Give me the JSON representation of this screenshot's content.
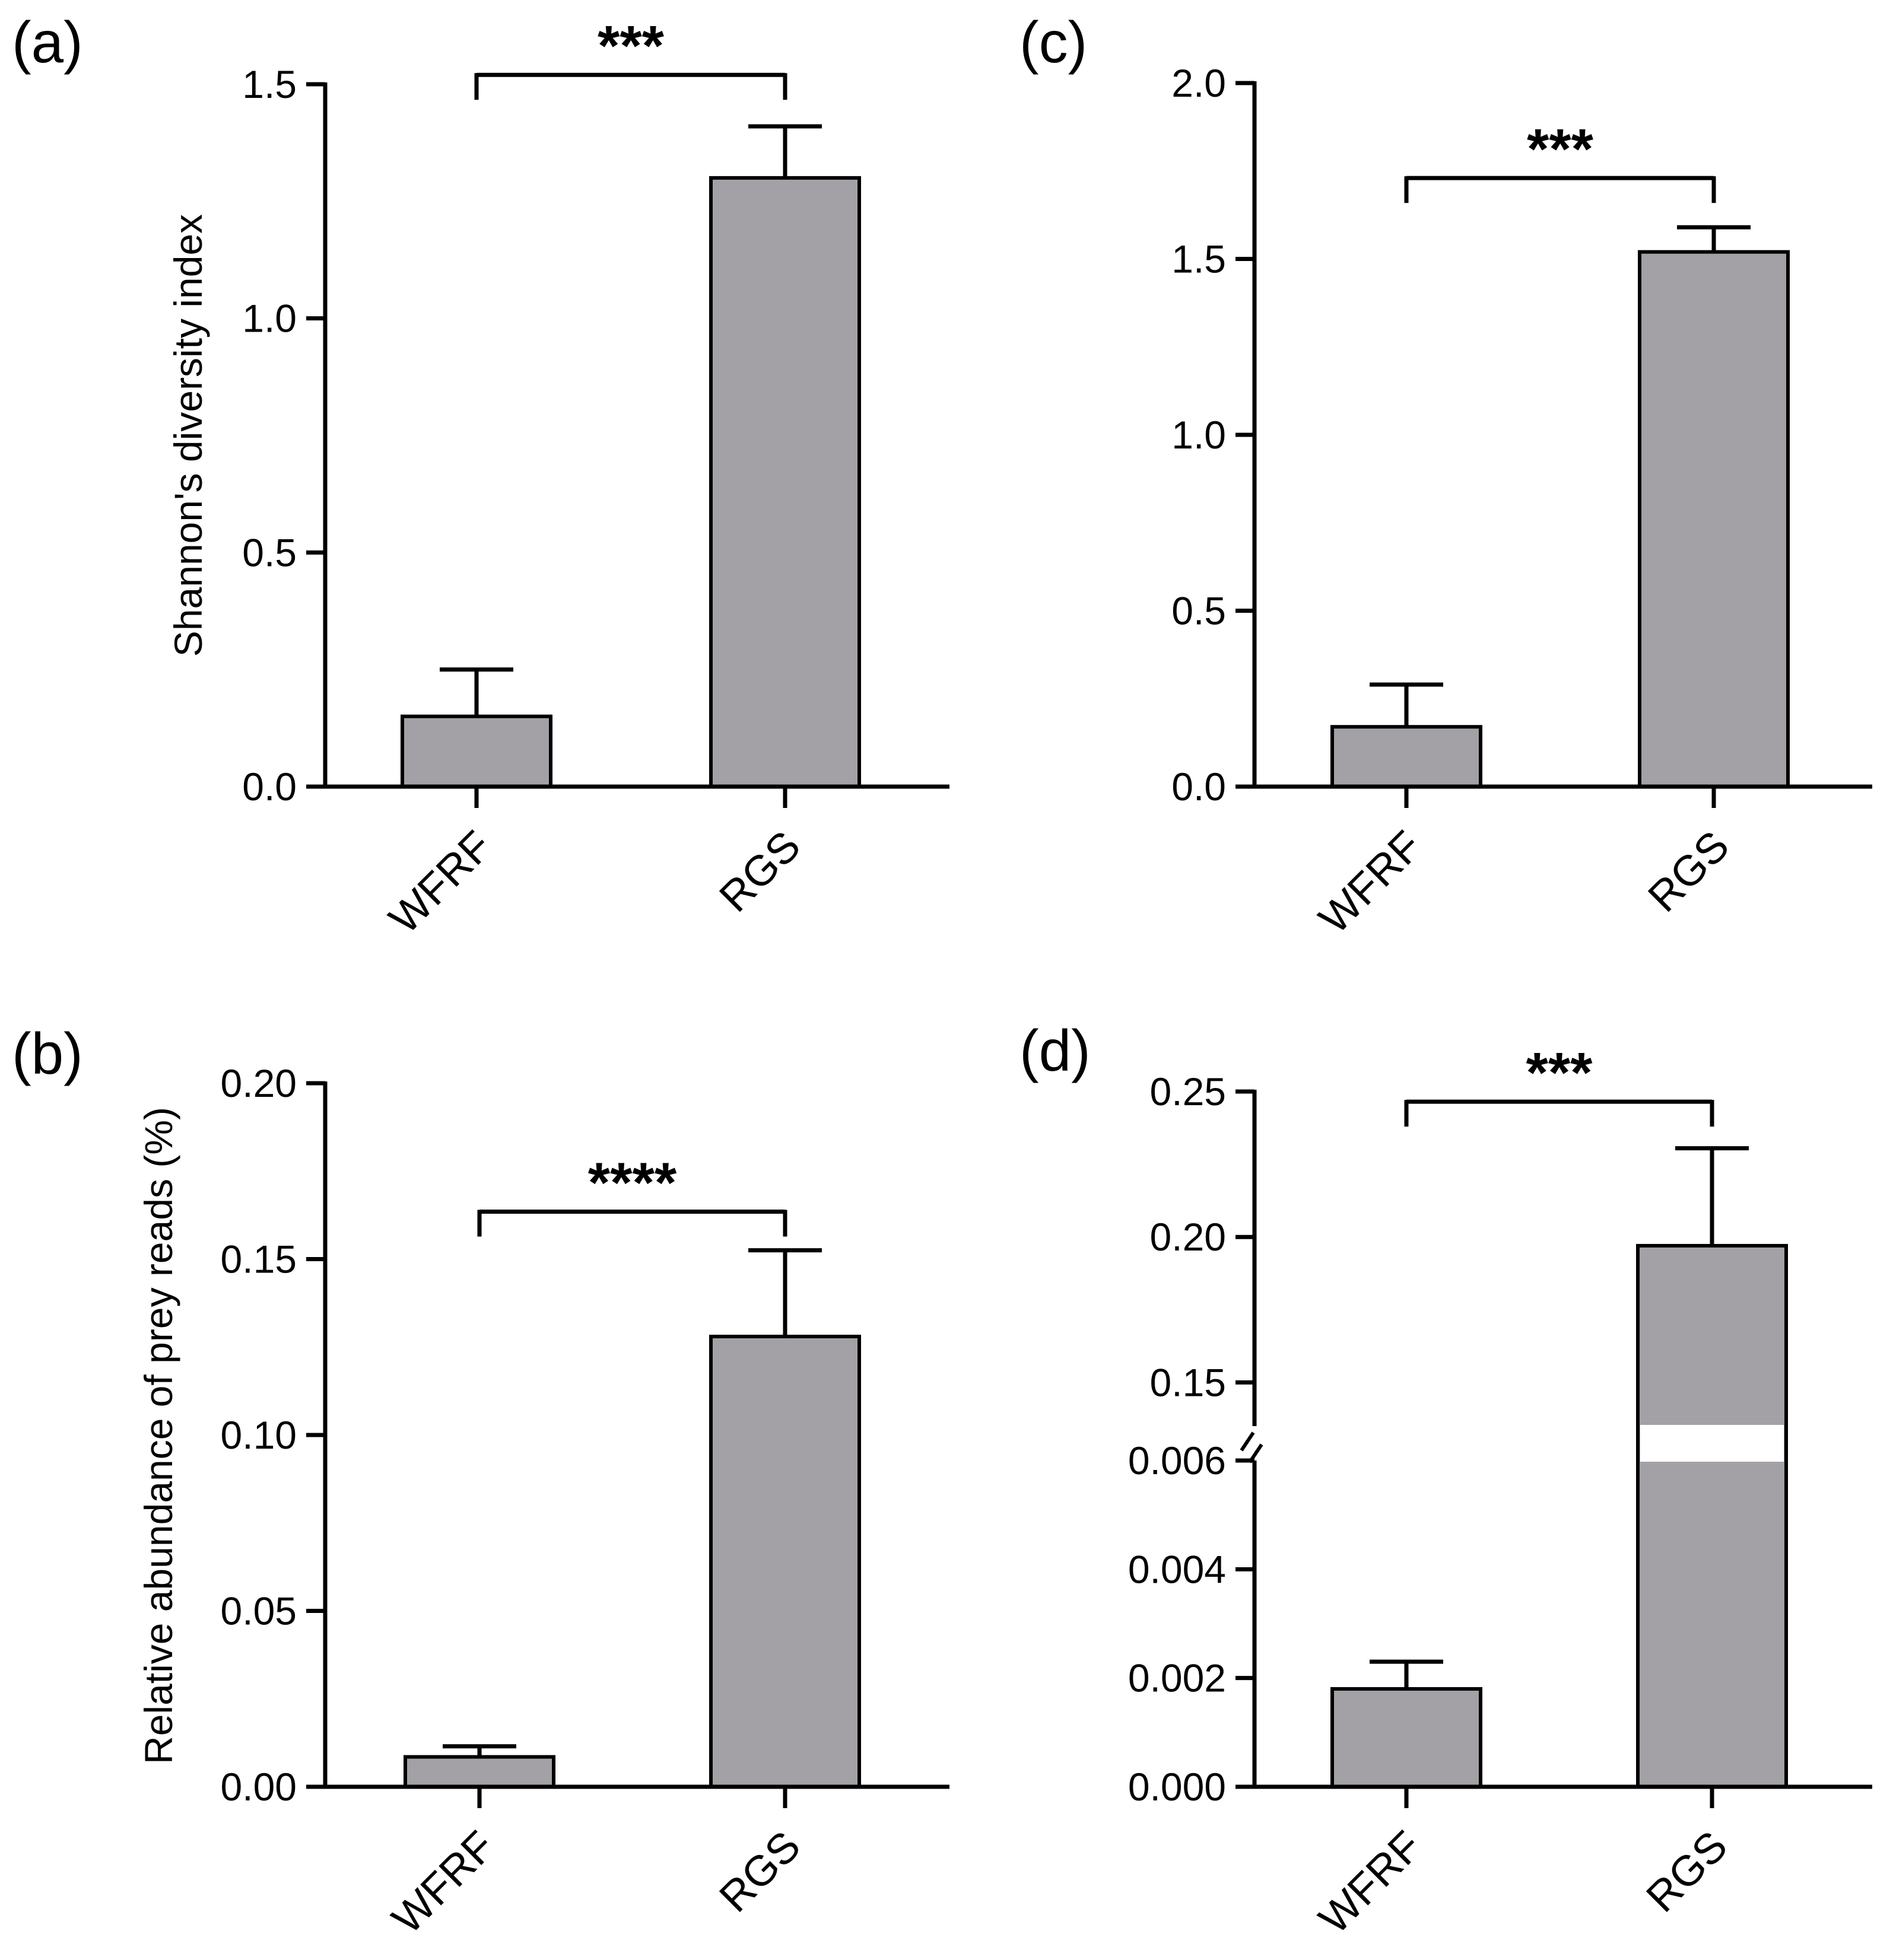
{
  "colors": {
    "bar_fill": "#a3a1a6",
    "stroke": "#000000",
    "background": "#ffffff"
  },
  "chart_data": [
    {
      "panel": "(a)",
      "type": "bar",
      "categories": [
        "WFRF",
        "RGS"
      ],
      "values": [
        0.15,
        1.3
      ],
      "error": [
        0.1,
        0.11
      ],
      "ylabel": "Shannon's diversity index",
      "ylim": [
        0,
        1.5
      ],
      "yticks": [
        "0.0",
        "0.5",
        "1.0",
        "1.5"
      ],
      "yticks_values": [
        0,
        0.5,
        1.0,
        1.5
      ],
      "significance": "***",
      "bracket_level": 1.52
    },
    {
      "panel": "(b)",
      "type": "bar",
      "categories": [
        "WFRF",
        "RGS"
      ],
      "values": [
        0.0085,
        0.128
      ],
      "error": [
        0.003,
        0.0245
      ],
      "ylabel": "Relative abundance of prey reads (%)",
      "ylim": [
        0,
        0.2
      ],
      "yticks": [
        "0.00",
        "0.05",
        "0.10",
        "0.15",
        "0.20"
      ],
      "yticks_values": [
        0,
        0.05,
        0.1,
        0.15,
        0.2
      ],
      "significance": "****",
      "bracket_level": 0.1635
    },
    {
      "panel": "(c)",
      "type": "bar",
      "categories": [
        "WFRF",
        "RGS"
      ],
      "values": [
        0.17,
        1.52
      ],
      "error": [
        0.12,
        0.07
      ],
      "ylabel": "",
      "ylim": [
        0,
        2.0
      ],
      "yticks": [
        "0.0",
        "0.5",
        "1.0",
        "1.5",
        "2.0"
      ],
      "yticks_values": [
        0,
        0.5,
        1.0,
        1.5,
        2.0
      ],
      "significance": "***",
      "bracket_level": 1.73
    },
    {
      "panel": "(d)",
      "type": "bar",
      "categories": [
        "WFRF",
        "RGS"
      ],
      "values": [
        0.0018,
        0.197
      ],
      "error": [
        0.0005,
        0.0335
      ],
      "ylabel": "",
      "axis_break": true,
      "lower_ylim": [
        0,
        0.006
      ],
      "upper_ylim": [
        0.135,
        0.25
      ],
      "yticks": [
        "0.000",
        "0.002",
        "0.004",
        "0.006",
        "0.15",
        "0.20",
        "0.25"
      ],
      "yticks_values": [
        0,
        0.002,
        0.004,
        0.006,
        0.15,
        0.2,
        0.25
      ],
      "significance": "***",
      "bracket_level": 0.2465
    }
  ]
}
